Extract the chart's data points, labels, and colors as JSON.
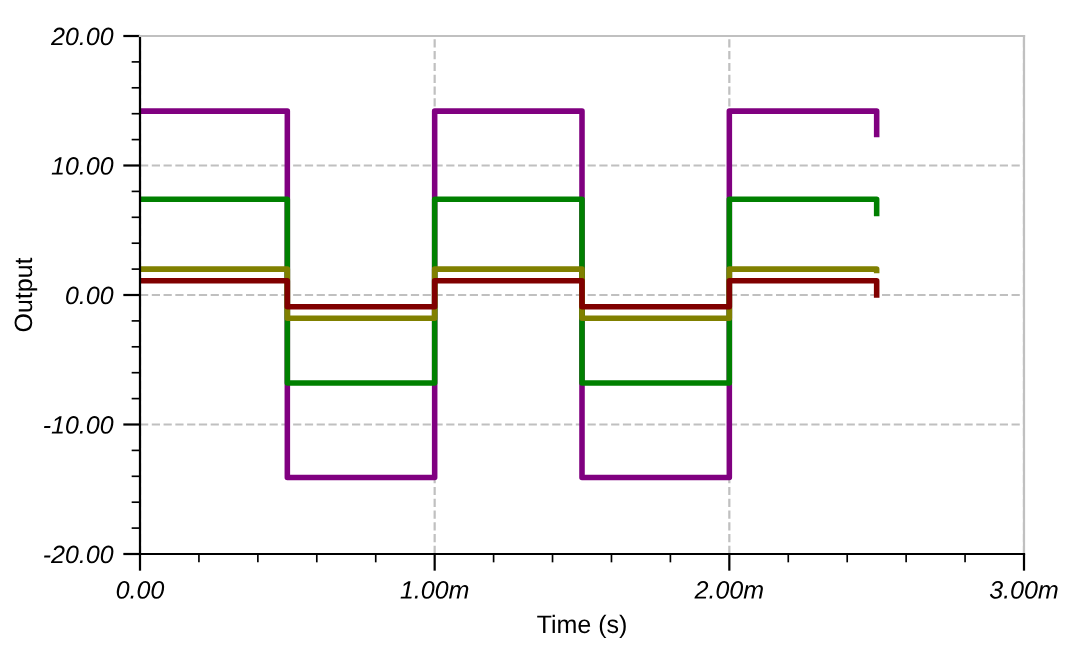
{
  "chart_data": {
    "type": "step",
    "xlabel": "Time (s)",
    "ylabel": "Output",
    "x": [
      0,
      0.5,
      1,
      1.5,
      2,
      2.5
    ],
    "series": [
      {
        "color": "#800080",
        "values": [
          14.2,
          -14.1,
          14.2,
          -14.1,
          14.2,
          12.4
        ]
      },
      {
        "color": "#008000",
        "values": [
          7.4,
          -6.8,
          7.4,
          -6.8,
          7.4,
          6.3
        ]
      },
      {
        "color": "#808000",
        "values": [
          2.0,
          -1.8,
          2.0,
          -1.8,
          2.0,
          1.9
        ]
      },
      {
        "color": "#800000",
        "values": [
          1.1,
          -0.9,
          1.1,
          -0.9,
          1.1,
          0.0
        ]
      }
    ],
    "xlim": [
      0,
      3
    ],
    "ylim": [
      -20,
      20
    ],
    "xticks": [
      {
        "value": 0,
        "label": "0.00"
      },
      {
        "value": 1,
        "label": "1.00m"
      },
      {
        "value": 2,
        "label": "2.00m"
      },
      {
        "value": 3,
        "label": "3.00m"
      }
    ],
    "yticks": [
      {
        "value": -20,
        "label": "-20.00"
      },
      {
        "value": -10,
        "label": "-10.00"
      },
      {
        "value": 0,
        "label": "0.00"
      },
      {
        "value": 10,
        "label": "10.00"
      },
      {
        "value": 20,
        "label": "20.00"
      }
    ],
    "grid": true,
    "line_style": "solid",
    "marker": "none"
  }
}
